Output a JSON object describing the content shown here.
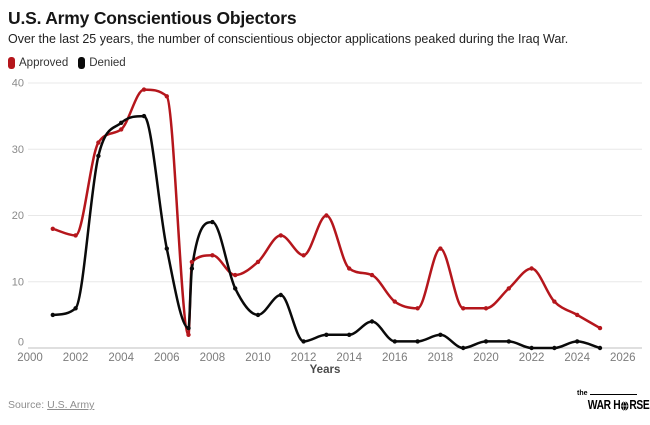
{
  "header": {
    "title": "U.S. Army Conscientious Objectors",
    "subtitle": "Over the last 25 years, the number of conscientious objector applications peaked during the Iraq War."
  },
  "legend": [
    {
      "label": "Approved",
      "color": "#b5161c"
    },
    {
      "label": "Denied",
      "color": "#0a0a0a"
    }
  ],
  "chart_data": {
    "type": "line",
    "title": "U.S. Army Conscientious Objectors",
    "xlabel": "Years",
    "ylabel": "",
    "xlim": [
      2000,
      2026
    ],
    "ylim": [
      0,
      40
    ],
    "x_ticks": [
      2000,
      2002,
      2004,
      2006,
      2008,
      2010,
      2012,
      2014,
      2016,
      2018,
      2020,
      2022,
      2024,
      2026
    ],
    "y_ticks": [
      0,
      10,
      20,
      30,
      40
    ],
    "grid": true,
    "smoothing": "monotone",
    "legend_position": "top-left",
    "series": [
      {
        "name": "Approved",
        "color": "#b5161c",
        "points": [
          [
            2001,
            18
          ],
          [
            2002,
            17
          ],
          [
            2003,
            31
          ],
          [
            2004,
            33
          ],
          [
            2005,
            39
          ],
          [
            2006,
            38
          ],
          [
            2006.95,
            2
          ],
          [
            2007.1,
            13
          ],
          [
            2008,
            14
          ],
          [
            2009,
            11
          ],
          [
            2010,
            13
          ],
          [
            2011,
            17
          ],
          [
            2012,
            14
          ],
          [
            2013,
            20
          ],
          [
            2014,
            12
          ],
          [
            2015,
            11
          ],
          [
            2016,
            7
          ],
          [
            2017,
            6
          ],
          [
            2018,
            15
          ],
          [
            2019,
            6
          ],
          [
            2020,
            6
          ],
          [
            2021,
            9
          ],
          [
            2022,
            12
          ],
          [
            2023,
            7
          ],
          [
            2024,
            5
          ],
          [
            2025,
            3
          ]
        ]
      },
      {
        "name": "Denied",
        "color": "#0a0a0a",
        "points": [
          [
            2001,
            5
          ],
          [
            2002,
            6
          ],
          [
            2003,
            29
          ],
          [
            2004,
            34
          ],
          [
            2005,
            35
          ],
          [
            2006,
            15
          ],
          [
            2006.95,
            3
          ],
          [
            2007.1,
            12
          ],
          [
            2008,
            19
          ],
          [
            2009,
            9
          ],
          [
            2010,
            5
          ],
          [
            2011,
            8
          ],
          [
            2012,
            1
          ],
          [
            2013,
            2
          ],
          [
            2014,
            2
          ],
          [
            2015,
            4
          ],
          [
            2016,
            1
          ],
          [
            2017,
            1
          ],
          [
            2018,
            2
          ],
          [
            2019,
            0
          ],
          [
            2020,
            1
          ],
          [
            2021,
            1
          ],
          [
            2022,
            0
          ],
          [
            2023,
            0
          ],
          [
            2024,
            1
          ],
          [
            2025,
            0
          ]
        ]
      }
    ]
  },
  "footer": {
    "source_prefix": "Source: ",
    "source_link": "U.S. Army",
    "logo_the": "the",
    "logo_left": "WAR H",
    "logo_right": "RSE"
  }
}
